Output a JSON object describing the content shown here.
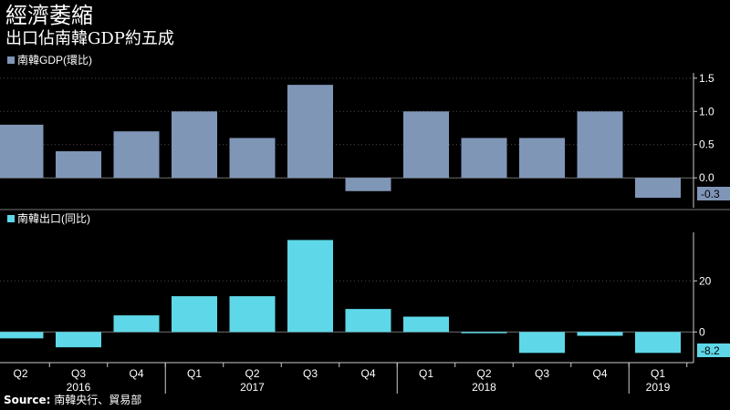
{
  "title": "經濟萎縮",
  "subtitle": "出口佔南韓GDP約五成",
  "source": {
    "label": "Source:",
    "text": "南韓央行、貿易部"
  },
  "colors": {
    "background": "#000000",
    "gdp_bar": "#8096b7",
    "export_bar": "#5ed8e8",
    "grid": "#4a4a4a",
    "text": "#ffffff"
  },
  "chart_data": [
    {
      "type": "bar",
      "legend": "南韓GDP(環比)",
      "categories": [
        "Q2 2016",
        "Q3 2016",
        "Q4 2016",
        "Q1 2017",
        "Q2 2017",
        "Q3 2017",
        "Q4 2017",
        "Q1 2018",
        "Q2 2018",
        "Q3 2018",
        "Q4 2018",
        "Q1 2019"
      ],
      "values": [
        0.8,
        0.4,
        0.7,
        1.0,
        0.6,
        1.4,
        -0.2,
        1.0,
        0.6,
        0.6,
        1.0,
        -0.3
      ],
      "ylim": [
        -0.45,
        1.58
      ],
      "yticks": [
        -0.5,
        0.0,
        0.5,
        1.0,
        1.5
      ],
      "ytick_labels": [
        "",
        "0.0",
        "0.5",
        "1.0",
        "1.5"
      ],
      "last_value_label": "-0.3"
    },
    {
      "type": "bar",
      "legend": "南韓出口(同比)",
      "categories": [
        "Q2 2016",
        "Q3 2016",
        "Q4 2016",
        "Q1 2017",
        "Q2 2017",
        "Q3 2017",
        "Q4 2017",
        "Q1 2018",
        "Q2 2018",
        "Q3 2018",
        "Q4 2018",
        "Q1 2019"
      ],
      "values": [
        -2.5,
        -6,
        6.5,
        14,
        14,
        36,
        9,
        6,
        -0.5,
        -8.2,
        -1.5,
        -8.2
      ],
      "ylim": [
        -12,
        39
      ],
      "yticks": [
        0,
        20
      ],
      "ytick_labels": [
        "0",
        "20"
      ],
      "last_value_label": "-8.2"
    }
  ],
  "x_axis": {
    "quarter_labels": [
      "Q2",
      "Q3",
      "Q4",
      "Q1",
      "Q2",
      "Q3",
      "Q4",
      "Q1",
      "Q2",
      "Q3",
      "Q4",
      "Q1"
    ],
    "years": [
      {
        "label": "2016",
        "under_index": 1
      },
      {
        "label": "2017",
        "under_index": 4
      },
      {
        "label": "2018",
        "under_index": 8
      },
      {
        "label": "2019",
        "under_index": 11
      }
    ],
    "year_boundaries_after_index": [
      2,
      6,
      10
    ]
  }
}
